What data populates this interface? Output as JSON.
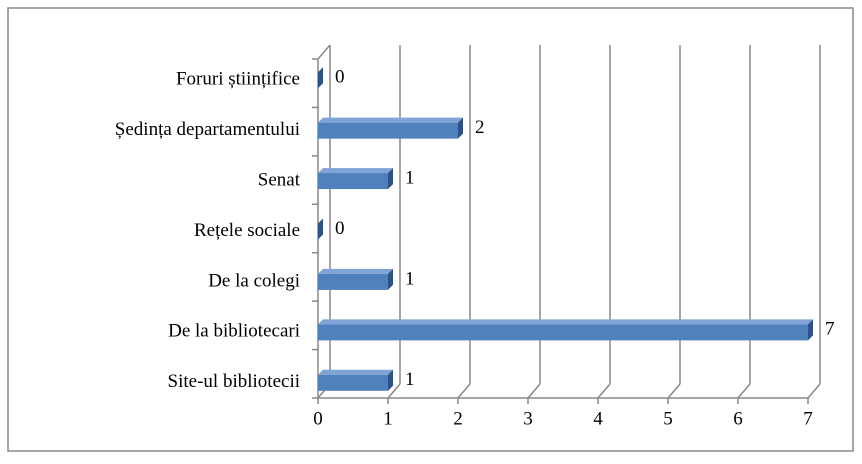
{
  "chart_data": {
    "type": "bar",
    "orientation": "horizontal",
    "categories": [
      "Foruri științifice",
      "Ședința departamentului",
      "Senat",
      "Rețele sociale",
      "De la colegi",
      "De la bibliotecari",
      "Site-ul bibliotecii"
    ],
    "values": [
      0,
      2,
      1,
      0,
      1,
      7,
      1
    ],
    "color": "#4f81bd",
    "xlim": [
      0,
      7
    ],
    "xticks": [
      0,
      1,
      2,
      3,
      4,
      5,
      6,
      7
    ],
    "grid": true
  }
}
